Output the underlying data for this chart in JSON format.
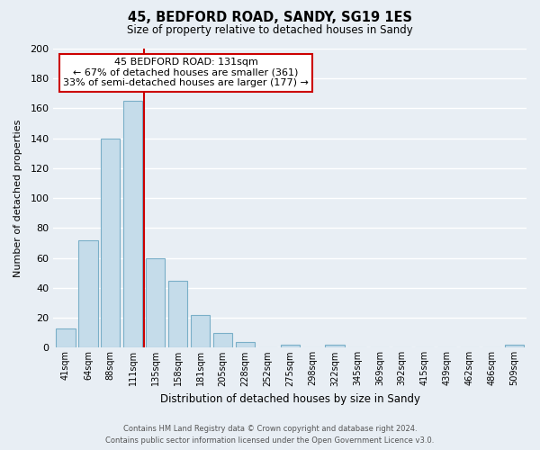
{
  "title": "45, BEDFORD ROAD, SANDY, SG19 1ES",
  "subtitle": "Size of property relative to detached houses in Sandy",
  "xlabel": "Distribution of detached houses by size in Sandy",
  "ylabel": "Number of detached properties",
  "bar_labels": [
    "41sqm",
    "64sqm",
    "88sqm",
    "111sqm",
    "135sqm",
    "158sqm",
    "181sqm",
    "205sqm",
    "228sqm",
    "252sqm",
    "275sqm",
    "298sqm",
    "322sqm",
    "345sqm",
    "369sqm",
    "392sqm",
    "415sqm",
    "439sqm",
    "462sqm",
    "486sqm",
    "509sqm"
  ],
  "bar_values": [
    13,
    72,
    140,
    165,
    60,
    45,
    22,
    10,
    4,
    0,
    2,
    0,
    2,
    0,
    0,
    0,
    0,
    0,
    0,
    0,
    2
  ],
  "bar_color": "#c5dcea",
  "bar_edge_color": "#7aafc8",
  "vline_color": "#cc0000",
  "ylim": [
    0,
    200
  ],
  "yticks": [
    0,
    20,
    40,
    60,
    80,
    100,
    120,
    140,
    160,
    180,
    200
  ],
  "annotation_title": "45 BEDFORD ROAD: 131sqm",
  "annotation_line1": "← 67% of detached houses are smaller (361)",
  "annotation_line2": "33% of semi-detached houses are larger (177) →",
  "annotation_box_facecolor": "#ffffff",
  "annotation_box_edgecolor": "#cc0000",
  "footer_line1": "Contains HM Land Registry data © Crown copyright and database right 2024.",
  "footer_line2": "Contains public sector information licensed under the Open Government Licence v3.0.",
  "bg_color": "#e8eef4",
  "grid_color": "#ffffff"
}
